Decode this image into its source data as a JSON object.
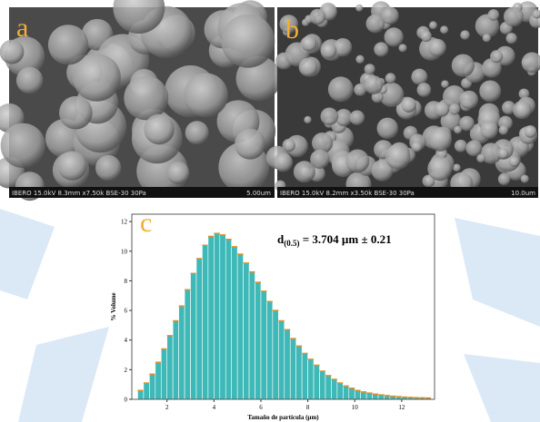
{
  "panels": {
    "a": {
      "label": "a",
      "caption": "IBERO 15.0kV 8.3mm x7.50k BSE-30 30Pa",
      "scale": "5.00um"
    },
    "b": {
      "label": "b",
      "caption": "IBERO 15.0kV 8.2mm x3.50k BSE-30 30Pa",
      "scale": "10.0um"
    },
    "c": {
      "label": "c"
    }
  },
  "chart_data": {
    "type": "histogram",
    "annotation": {
      "main": "d",
      "sub": "(0.5)",
      "rest": " = 3.704 µm ± 0.21"
    },
    "x_label": "Tamaño de partícula (µm)",
    "y_label": "% Volume",
    "bins": [
      0.75,
      1.0,
      1.25,
      1.5,
      1.75,
      2.0,
      2.25,
      2.5,
      2.75,
      3.0,
      3.25,
      3.5,
      3.75,
      4.0,
      4.25,
      4.5,
      4.75,
      5.0,
      5.25,
      5.5,
      5.75,
      6.0,
      6.25,
      6.5,
      6.75,
      7.0,
      7.25,
      7.5,
      7.75,
      8.0,
      8.25,
      8.5,
      8.75,
      9.0,
      9.25,
      9.5,
      9.75,
      10.0,
      10.25,
      10.5,
      10.75,
      11.0,
      11.25,
      11.5,
      11.75,
      12.0,
      12.25,
      12.5,
      12.75,
      13.0,
      13.25
    ],
    "values": [
      0.6,
      1.1,
      1.7,
      2.5,
      3.4,
      4.3,
      5.3,
      6.3,
      7.4,
      8.5,
      9.5,
      10.4,
      11.0,
      11.2,
      11.1,
      10.8,
      10.3,
      9.8,
      9.2,
      8.6,
      7.9,
      7.3,
      6.6,
      6.0,
      5.3,
      4.7,
      4.1,
      3.6,
      3.1,
      2.7,
      2.3,
      1.9,
      1.6,
      1.35,
      1.1,
      0.9,
      0.75,
      0.6,
      0.5,
      0.42,
      0.35,
      0.3,
      0.25,
      0.21,
      0.18,
      0.15,
      0.13,
      0.11,
      0.1,
      0.09
    ],
    "color": "#3fb8b8",
    "edge_color": "#e0902a",
    "xlim": [
      0.5,
      13.4
    ],
    "xticks": [
      2,
      4,
      6,
      8,
      10,
      12
    ],
    "ylim": [
      0,
      12.5
    ],
    "yticks": [
      0,
      2,
      4,
      6,
      8,
      10,
      12
    ]
  }
}
